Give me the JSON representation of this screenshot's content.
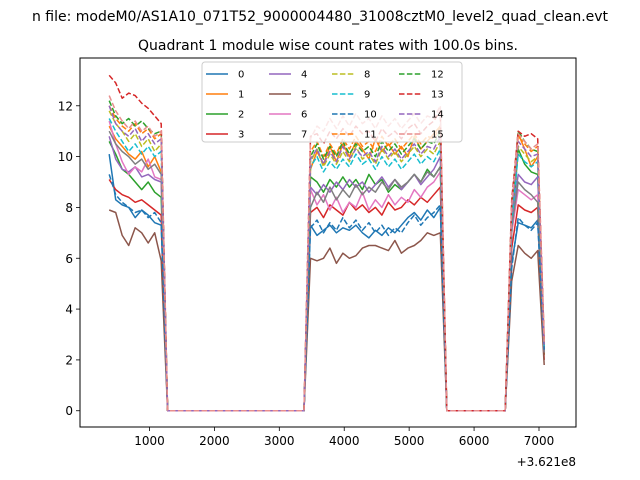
{
  "chart_data": {
    "type": "line",
    "suptitle": "n file: modeM0/AS1A10_071T52_9000004480_31008cztM0_level2_quad_clean.evt",
    "title": "Quadrant 1 module wise count rates with 100.0s bins.",
    "xlabel": "",
    "ylabel": "",
    "offset_text": "+3.621e8",
    "xlim": [
      -70,
      7570
    ],
    "ylim": [
      -0.64,
      13.88
    ],
    "xticks": [
      1000,
      2000,
      3000,
      4000,
      5000,
      6000,
      7000
    ],
    "xtick_labels": [
      "1000",
      "2000",
      "3000",
      "4000",
      "5000",
      "6000",
      "7000"
    ],
    "yticks": [
      0,
      2,
      4,
      6,
      8,
      10,
      12
    ],
    "ytick_labels": [
      "0",
      "2",
      "4",
      "6",
      "8",
      "10",
      "12"
    ],
    "grid": false,
    "legend_placement": "upper center",
    "legend_columns": 4,
    "x": [
      380,
      480,
      580,
      680,
      780,
      880,
      980,
      1080,
      1180,
      1280,
      1380,
      1480,
      1580,
      1680,
      1780,
      1880,
      1980,
      2080,
      2180,
      2280,
      2380,
      2480,
      2580,
      2680,
      2780,
      2880,
      2980,
      3080,
      3180,
      3280,
      3380,
      3480,
      3580,
      3680,
      3780,
      3880,
      3980,
      4080,
      4180,
      4280,
      4380,
      4480,
      4580,
      4680,
      4780,
      4880,
      4980,
      5080,
      5180,
      5280,
      5380,
      5480,
      5580,
      5680,
      5780,
      5880,
      5980,
      6080,
      6180,
      6280,
      6380,
      6480,
      6580,
      6680,
      6780,
      6880,
      6980,
      7080
    ],
    "series": [
      {
        "name": "0",
        "color": "#1f77b4",
        "dash": "solid",
        "values": [
          10.1,
          8.3,
          8.1,
          8.0,
          7.6,
          7.9,
          7.7,
          7.4,
          7.3,
          0,
          0,
          0,
          0,
          0,
          0,
          0,
          0,
          0,
          0,
          0,
          0,
          0,
          0,
          0,
          0,
          0,
          0,
          0,
          0,
          0,
          0,
          7.3,
          6.9,
          7.1,
          7.3,
          7.0,
          7.2,
          7.1,
          7.3,
          7.0,
          6.8,
          7.1,
          6.9,
          7.2,
          7.0,
          7.3,
          7.6,
          7.8,
          7.5,
          7.9,
          7.6,
          8.0,
          0,
          0,
          0,
          0,
          0,
          0,
          0,
          0,
          0,
          0,
          5.8,
          7.4,
          7.3,
          7.2,
          7.5,
          2.5
        ]
      },
      {
        "name": "1",
        "color": "#ff7f0e",
        "dash": "solid",
        "values": [
          11.2,
          10.7,
          10.4,
          10.1,
          9.9,
          10.2,
          9.6,
          10.0,
          9.4,
          0,
          0,
          0,
          0,
          0,
          0,
          0,
          0,
          0,
          0,
          0,
          0,
          0,
          0,
          0,
          0,
          0,
          0,
          0,
          0,
          0,
          0,
          9.5,
          10.2,
          9.7,
          10.4,
          9.8,
          10.5,
          10.0,
          10.6,
          10.3,
          9.9,
          10.7,
          10.2,
          10.5,
          10.1,
          10.4,
          10.0,
          10.8,
          10.3,
          10.6,
          10.9,
          11.2,
          0,
          0,
          0,
          0,
          0,
          0,
          0,
          0,
          0,
          0,
          7.5,
          10.9,
          10.3,
          9.6,
          10.0,
          2.5
        ]
      },
      {
        "name": "2",
        "color": "#2ca02c",
        "dash": "solid",
        "values": [
          10.6,
          10.1,
          9.5,
          9.3,
          9.0,
          8.7,
          9.0,
          8.6,
          8.4,
          0,
          0,
          0,
          0,
          0,
          0,
          0,
          0,
          0,
          0,
          0,
          0,
          0,
          0,
          0,
          0,
          0,
          0,
          0,
          0,
          0,
          0,
          9.2,
          9.0,
          8.6,
          9.1,
          8.8,
          9.2,
          8.8,
          9.1,
          8.7,
          9.3,
          8.9,
          9.1,
          8.6,
          8.9,
          8.7,
          9.0,
          9.3,
          9.0,
          9.5,
          9.2,
          9.6,
          0,
          0,
          0,
          0,
          0,
          0,
          0,
          0,
          0,
          0,
          7.0,
          10.3,
          9.7,
          9.4,
          9.3,
          2.2
        ]
      },
      {
        "name": "3",
        "color": "#d62728",
        "dash": "solid",
        "values": [
          9.1,
          8.7,
          8.5,
          8.4,
          8.2,
          8.3,
          8.1,
          7.9,
          7.7,
          0,
          0,
          0,
          0,
          0,
          0,
          0,
          0,
          0,
          0,
          0,
          0,
          0,
          0,
          0,
          0,
          0,
          0,
          0,
          0,
          0,
          0,
          7.8,
          8.0,
          7.6,
          8.1,
          7.9,
          7.7,
          8.2,
          7.9,
          8.1,
          7.8,
          8.0,
          7.7,
          8.2,
          7.9,
          8.0,
          8.3,
          8.1,
          8.4,
          8.2,
          8.5,
          8.8,
          0,
          0,
          0,
          0,
          0,
          0,
          0,
          0,
          0,
          0,
          6.4,
          8.1,
          7.9,
          7.8,
          8.0,
          2.0
        ]
      },
      {
        "name": "4",
        "color": "#9467bd",
        "dash": "solid",
        "values": [
          10.8,
          9.9,
          9.5,
          9.4,
          9.6,
          9.2,
          9.3,
          9.1,
          9.0,
          0,
          0,
          0,
          0,
          0,
          0,
          0,
          0,
          0,
          0,
          0,
          0,
          0,
          0,
          0,
          0,
          0,
          0,
          0,
          0,
          0,
          0,
          8.8,
          8.5,
          8.9,
          8.6,
          9.0,
          8.7,
          9.1,
          8.8,
          9.0,
          8.6,
          8.9,
          9.2,
          8.8,
          9.1,
          8.7,
          9.0,
          9.3,
          8.9,
          9.2,
          9.5,
          10.0,
          0,
          0,
          0,
          0,
          0,
          0,
          0,
          0,
          0,
          0,
          7.3,
          9.3,
          9.0,
          8.9,
          9.2,
          2.3
        ]
      },
      {
        "name": "5",
        "color": "#8c564b",
        "dash": "solid",
        "values": [
          7.9,
          7.8,
          6.9,
          6.5,
          7.2,
          7.0,
          6.6,
          7.0,
          5.9,
          0,
          0,
          0,
          0,
          0,
          0,
          0,
          0,
          0,
          0,
          0,
          0,
          0,
          0,
          0,
          0,
          0,
          0,
          0,
          0,
          0,
          0,
          6.0,
          5.9,
          6.0,
          6.4,
          5.8,
          6.2,
          6.0,
          6.1,
          6.4,
          6.5,
          6.5,
          6.4,
          6.3,
          6.7,
          6.2,
          6.4,
          6.5,
          6.7,
          7.0,
          6.9,
          7.0,
          0,
          0,
          0,
          0,
          0,
          0,
          0,
          0,
          0,
          0,
          5.1,
          6.5,
          6.2,
          6.0,
          6.3,
          1.8
        ]
      },
      {
        "name": "6",
        "color": "#e377c2",
        "dash": "solid",
        "values": [
          11.4,
          10.5,
          9.8,
          9.3,
          9.6,
          9.4,
          9.9,
          9.2,
          9.1,
          0,
          0,
          0,
          0,
          0,
          0,
          0,
          0,
          0,
          0,
          0,
          0,
          0,
          0,
          0,
          0,
          0,
          0,
          0,
          0,
          0,
          0,
          8.7,
          8.1,
          8.5,
          7.9,
          8.4,
          7.8,
          8.2,
          8.0,
          8.6,
          7.9,
          8.3,
          8.0,
          8.5,
          8.1,
          8.4,
          8.2,
          8.7,
          8.4,
          8.8,
          9.0,
          9.4,
          0,
          0,
          0,
          0,
          0,
          0,
          0,
          0,
          0,
          0,
          7.0,
          8.7,
          8.5,
          8.3,
          8.5,
          2.3
        ]
      },
      {
        "name": "7",
        "color": "#7f7f7f",
        "dash": "solid",
        "values": [
          11.0,
          10.5,
          10.2,
          10.0,
          9.7,
          9.9,
          9.5,
          9.7,
          9.3,
          0,
          0,
          0,
          0,
          0,
          0,
          0,
          0,
          0,
          0,
          0,
          0,
          0,
          0,
          0,
          0,
          0,
          0,
          0,
          0,
          0,
          0,
          8.0,
          8.6,
          8.2,
          8.8,
          8.3,
          8.7,
          8.4,
          8.9,
          8.5,
          8.8,
          8.6,
          9.0,
          8.7,
          9.1,
          8.8,
          9.0,
          9.3,
          9.0,
          9.4,
          9.2,
          9.6,
          0,
          0,
          0,
          0,
          0,
          0,
          0,
          0,
          0,
          0,
          7.2,
          9.0,
          8.7,
          8.5,
          8.2,
          2.3
        ]
      },
      {
        "name": "8",
        "color": "#bcbd22",
        "dash": "dashed",
        "values": [
          11.8,
          11.3,
          11.0,
          10.6,
          10.9,
          10.4,
          10.7,
          10.2,
          10.5,
          0,
          0,
          0,
          0,
          0,
          0,
          0,
          0,
          0,
          0,
          0,
          0,
          0,
          0,
          0,
          0,
          0,
          0,
          0,
          0,
          0,
          0,
          9.8,
          10.3,
          9.6,
          10.1,
          9.7,
          10.2,
          9.8,
          10.4,
          9.9,
          10.1,
          9.7,
          10.3,
          9.9,
          10.2,
          9.8,
          10.1,
          10.4,
          10.0,
          10.3,
          10.1,
          10.6,
          0,
          0,
          0,
          0,
          0,
          0,
          0,
          0,
          0,
          0,
          7.6,
          10.4,
          10.1,
          9.8,
          10.0,
          2.6
        ]
      },
      {
        "name": "9",
        "color": "#17becf",
        "dash": "dashed",
        "values": [
          11.5,
          11.0,
          10.6,
          10.2,
          10.5,
          10.1,
          10.4,
          10.0,
          10.2,
          0,
          0,
          0,
          0,
          0,
          0,
          0,
          0,
          0,
          0,
          0,
          0,
          0,
          0,
          0,
          0,
          0,
          0,
          0,
          0,
          0,
          0,
          9.6,
          10.0,
          9.4,
          9.8,
          9.5,
          9.9,
          9.6,
          10.1,
          9.7,
          9.9,
          9.5,
          10.0,
          9.6,
          9.9,
          9.5,
          9.8,
          10.1,
          9.7,
          10.0,
          9.8,
          10.3,
          0,
          0,
          0,
          0,
          0,
          0,
          0,
          0,
          0,
          0,
          7.4,
          10.1,
          9.8,
          9.6,
          9.8,
          2.5
        ]
      },
      {
        "name": "10",
        "color": "#1f77b4",
        "dash": "dashed",
        "values": [
          9.3,
          8.5,
          8.2,
          8.0,
          7.8,
          7.9,
          7.6,
          7.8,
          7.4,
          0,
          0,
          0,
          0,
          0,
          0,
          0,
          0,
          0,
          0,
          0,
          0,
          0,
          0,
          0,
          0,
          0,
          0,
          0,
          0,
          0,
          0,
          7.2,
          7.5,
          7.0,
          7.4,
          7.1,
          7.6,
          7.2,
          7.5,
          7.1,
          7.4,
          7.0,
          7.3,
          6.9,
          7.2,
          7.0,
          7.4,
          7.7,
          7.3,
          7.6,
          7.8,
          8.1,
          0,
          0,
          0,
          0,
          0,
          0,
          0,
          0,
          0,
          0,
          5.6,
          7.6,
          7.3,
          7.1,
          7.4,
          2.4
        ]
      },
      {
        "name": "11",
        "color": "#ff7f0e",
        "dash": "dashed",
        "values": [
          12.0,
          11.5,
          11.2,
          11.0,
          11.3,
          10.9,
          11.1,
          10.7,
          10.9,
          0,
          0,
          0,
          0,
          0,
          0,
          0,
          0,
          0,
          0,
          0,
          0,
          0,
          0,
          0,
          0,
          0,
          0,
          0,
          0,
          0,
          0,
          10.2,
          10.6,
          10.0,
          10.5,
          10.1,
          10.7,
          10.3,
          10.8,
          10.4,
          10.6,
          10.2,
          10.8,
          10.4,
          10.7,
          10.3,
          10.6,
          10.9,
          10.5,
          10.8,
          10.7,
          11.2,
          0,
          0,
          0,
          0,
          0,
          0,
          0,
          0,
          0,
          0,
          7.9,
          10.8,
          10.5,
          10.2,
          10.4,
          2.7
        ]
      },
      {
        "name": "12",
        "color": "#2ca02c",
        "dash": "dashed",
        "values": [
          12.2,
          11.6,
          11.3,
          11.5,
          11.2,
          11.4,
          11.1,
          10.9,
          11.0,
          0,
          0,
          0,
          0,
          0,
          0,
          0,
          0,
          0,
          0,
          0,
          0,
          0,
          0,
          0,
          0,
          0,
          0,
          0,
          0,
          0,
          0,
          10.0,
          10.5,
          9.9,
          10.4,
          10.0,
          10.6,
          10.1,
          10.5,
          10.2,
          10.4,
          10.0,
          10.6,
          10.2,
          10.5,
          10.1,
          10.4,
          10.7,
          10.3,
          10.6,
          10.5,
          11.0,
          0,
          0,
          0,
          0,
          0,
          0,
          0,
          0,
          0,
          0,
          8.0,
          11.0,
          10.6,
          10.3,
          10.2,
          2.6
        ]
      },
      {
        "name": "13",
        "color": "#d62728",
        "dash": "dashed",
        "values": [
          13.2,
          12.9,
          12.3,
          12.5,
          12.4,
          12.1,
          11.9,
          11.6,
          11.3,
          0,
          0,
          0,
          0,
          0,
          0,
          0,
          0,
          0,
          0,
          0,
          0,
          0,
          0,
          0,
          0,
          0,
          0,
          0,
          0,
          0,
          0,
          10.8,
          10.9,
          10.5,
          11.0,
          10.7,
          11.1,
          10.8,
          11.2,
          10.9,
          11.0,
          10.6,
          11.1,
          10.8,
          11.0,
          10.7,
          11.1,
          11.3,
          10.9,
          11.2,
          11.4,
          11.8,
          0,
          0,
          0,
          0,
          0,
          0,
          0,
          0,
          0,
          0,
          8.3,
          11.0,
          10.8,
          10.9,
          10.7,
          2.8
        ]
      },
      {
        "name": "14",
        "color": "#9467bd",
        "dash": "dashed",
        "values": [
          12.0,
          11.3,
          11.0,
          10.8,
          11.1,
          10.6,
          10.9,
          10.5,
          10.7,
          0,
          0,
          0,
          0,
          0,
          0,
          0,
          0,
          0,
          0,
          0,
          0,
          0,
          0,
          0,
          0,
          0,
          0,
          0,
          0,
          0,
          0,
          9.9,
          10.3,
          9.7,
          10.2,
          9.8,
          10.4,
          9.9,
          10.3,
          10.0,
          10.2,
          9.8,
          10.4,
          10.0,
          10.3,
          9.9,
          10.2,
          10.5,
          10.1,
          10.4,
          10.3,
          10.8,
          0,
          0,
          0,
          0,
          0,
          0,
          0,
          0,
          0,
          0,
          7.7,
          10.6,
          10.3,
          10.0,
          10.1,
          2.5
        ]
      },
      {
        "name": "15",
        "color": "#e88e8e",
        "dash": "dashed",
        "values": [
          12.4,
          11.8,
          11.4,
          11.1,
          11.4,
          11.0,
          11.2,
          10.8,
          11.0,
          0,
          0,
          0,
          0,
          0,
          0,
          0,
          0,
          0,
          0,
          0,
          0,
          0,
          0,
          0,
          0,
          0,
          0,
          0,
          0,
          0,
          0,
          10.7,
          11.2,
          11.0,
          11.5,
          11.1,
          11.6,
          11.2,
          11.7,
          11.3,
          11.5,
          11.1,
          11.6,
          11.2,
          11.5,
          11.1,
          11.4,
          11.7,
          11.3,
          11.6,
          11.5,
          12.0,
          0,
          0,
          0,
          0,
          0,
          0,
          0,
          0,
          0,
          0,
          8.1,
          10.9,
          10.6,
          10.3,
          10.5,
          2.7
        ]
      }
    ]
  }
}
